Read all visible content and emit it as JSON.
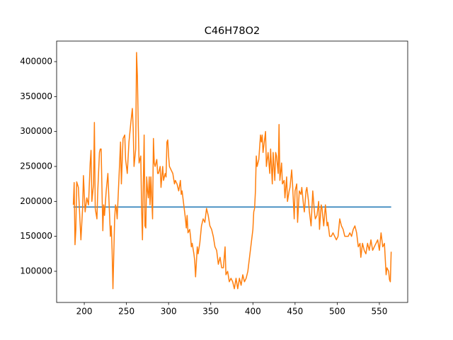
{
  "chart_data": {
    "type": "line",
    "title": "C46H78O2",
    "xlim": [
      167.2,
      583.6
    ],
    "ylim": [
      55400,
      429400
    ],
    "xticks": [
      200,
      250,
      300,
      350,
      400,
      450,
      500,
      550
    ],
    "yticks": [
      100000,
      150000,
      200000,
      250000,
      300000,
      350000,
      400000
    ],
    "series": [
      {
        "color": "#1f77b4",
        "x": [
          187,
          564
        ],
        "values": [
          192000,
          192000
        ]
      },
      {
        "color": "#ff7f0e",
        "x": [
          187,
          188,
          189,
          190,
          191,
          193,
          195,
          196,
          198,
          199,
          201,
          203,
          205,
          207,
          208,
          209,
          211,
          212,
          213,
          215,
          216,
          218,
          219,
          220,
          222,
          223,
          224,
          226,
          228,
          229,
          231,
          232,
          233,
          234,
          236,
          237,
          238,
          239,
          241,
          243,
          244,
          246,
          248,
          249,
          251,
          253,
          255,
          257,
          258,
          259,
          261,
          262,
          263,
          264,
          265,
          267,
          268,
          269,
          270,
          271,
          272,
          273,
          274,
          275,
          276,
          277,
          278,
          279,
          281,
          282,
          283,
          284,
          286,
          287,
          288,
          290,
          291,
          293,
          294,
          296,
          297,
          298,
          299,
          300,
          301,
          303,
          305,
          307,
          308,
          310,
          312,
          314,
          315,
          316,
          318,
          320,
          321,
          322,
          323,
          325,
          326,
          327,
          328,
          330,
          331,
          332,
          334,
          335,
          337,
          339,
          341,
          343,
          345,
          347,
          349,
          351,
          353,
          355,
          357,
          359,
          361,
          363,
          365,
          367,
          368,
          370,
          372,
          374,
          376,
          378,
          380,
          382,
          384,
          386,
          388,
          390,
          392,
          394,
          396,
          398,
          400,
          401,
          402,
          403,
          404,
          405,
          406,
          407,
          409,
          410,
          411,
          412,
          413,
          415,
          416,
          418,
          420,
          421,
          423,
          424,
          426,
          427,
          428,
          430,
          431,
          432,
          434,
          435,
          437,
          438,
          440,
          441,
          443,
          444,
          446,
          447,
          449,
          450,
          452,
          453,
          455,
          457,
          458,
          460,
          461,
          463,
          464,
          466,
          467,
          469,
          471,
          473,
          474,
          476,
          478,
          479,
          481,
          482,
          484,
          486,
          488,
          489,
          491,
          493,
          495,
          497,
          499,
          501,
          503,
          505,
          507,
          509,
          511,
          513,
          515,
          517,
          519,
          521,
          523,
          525,
          527,
          528,
          530,
          532,
          534,
          536,
          538,
          540,
          542,
          544,
          546,
          548,
          550,
          552,
          554,
          556,
          558,
          559,
          561,
          562,
          563,
          564
        ],
        "values": [
          195000,
          227000,
          138000,
          160000,
          228000,
          220000,
          170000,
          145000,
          190000,
          237000,
          185000,
          205000,
          195000,
          255000,
          273000,
          200000,
          225000,
          313000,
          190000,
          175000,
          215000,
          270000,
          275000,
          275000,
          158000,
          195000,
          180000,
          215000,
          240000,
          210000,
          150000,
          165000,
          130000,
          75000,
          175000,
          195000,
          190000,
          175000,
          230000,
          285000,
          225000,
          290000,
          295000,
          260000,
          240000,
          285000,
          310000,
          333000,
          305000,
          250000,
          275000,
          413000,
          380000,
          310000,
          255000,
          265000,
          190000,
          145000,
          225000,
          295000,
          165000,
          162000,
          235000,
          215000,
          205000,
          235000,
          195000,
          235000,
          175000,
          290000,
          255000,
          250000,
          260000,
          240000,
          240000,
          250000,
          220000,
          250000,
          230000,
          240000,
          235000,
          285000,
          288000,
          265000,
          250000,
          245000,
          240000,
          225000,
          230000,
          225000,
          215000,
          230000,
          210000,
          215000,
          195000,
          175000,
          162000,
          180000,
          155000,
          160000,
          150000,
          135000,
          140000,
          125000,
          115000,
          92000,
          135000,
          125000,
          140000,
          165000,
          175000,
          170000,
          190000,
          180000,
          165000,
          160000,
          150000,
          135000,
          130000,
          110000,
          120000,
          105000,
          105000,
          135000,
          95000,
          100000,
          85000,
          90000,
          85000,
          75000,
          90000,
          75000,
          90000,
          80000,
          95000,
          85000,
          90000,
          100000,
          120000,
          140000,
          160000,
          185000,
          190000,
          215000,
          265000,
          250000,
          255000,
          260000,
          295000,
          285000,
          295000,
          270000,
          280000,
          300000,
          250000,
          270000,
          240000,
          275000,
          225000,
          270000,
          230000,
          270000,
          265000,
          240000,
          310000,
          230000,
          255000,
          225000,
          230000,
          205000,
          235000,
          200000,
          215000,
          220000,
          245000,
          225000,
          175000,
          215000,
          225000,
          170000,
          215000,
          210000,
          220000,
          195000,
          185000,
          215000,
          220000,
          200000,
          185000,
          165000,
          215000,
          185000,
          175000,
          180000,
          200000,
          160000,
          195000,
          190000,
          165000,
          195000,
          165000,
          170000,
          150000,
          150000,
          155000,
          150000,
          145000,
          150000,
          175000,
          165000,
          160000,
          150000,
          150000,
          150000,
          155000,
          150000,
          160000,
          165000,
          155000,
          135000,
          140000,
          120000,
          140000,
          130000,
          125000,
          140000,
          130000,
          145000,
          130000,
          135000,
          140000,
          145000,
          130000,
          155000,
          135000,
          140000,
          95000,
          105000,
          100000,
          88000,
          85000,
          128000
        ]
      }
    ]
  }
}
